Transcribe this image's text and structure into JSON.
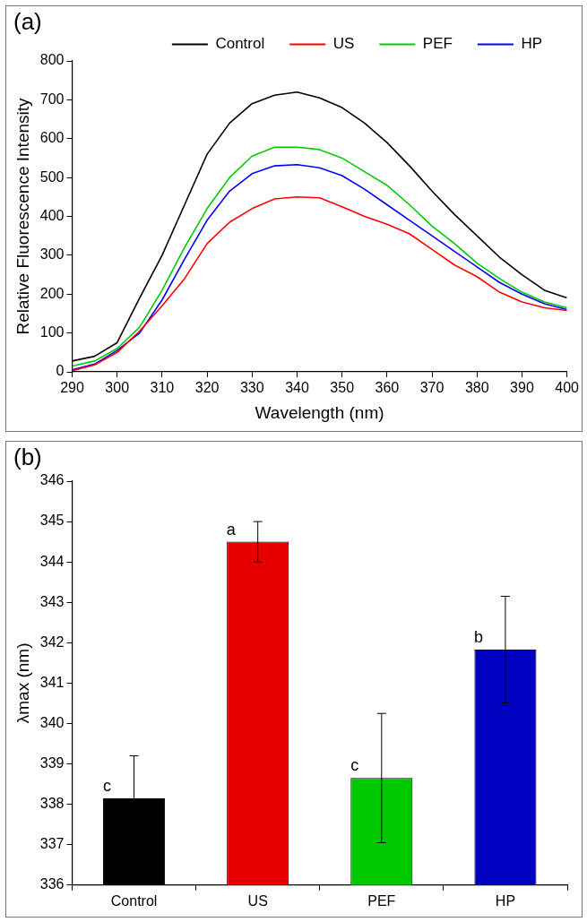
{
  "chart_data": [
    {
      "type": "line",
      "annotations": [
        "(a)"
      ],
      "xlabel": "Wavelength (nm)",
      "ylabel": "Relative Fluorescence Intensity",
      "xlim": [
        290,
        400
      ],
      "xticks": [
        290,
        300,
        310,
        320,
        330,
        340,
        350,
        360,
        370,
        380,
        390,
        400
      ],
      "ylim": [
        0,
        800
      ],
      "yticks": [
        0,
        100,
        200,
        300,
        400,
        500,
        600,
        700,
        800
      ],
      "grid": false,
      "legend": "top",
      "marker": "none",
      "line_style": "solid",
      "x": [
        290,
        295,
        300,
        305,
        310,
        315,
        320,
        325,
        330,
        335,
        340,
        345,
        350,
        355,
        360,
        365,
        370,
        375,
        380,
        385,
        390,
        395,
        400
      ],
      "series": [
        {
          "name": "Control",
          "color": "#000000",
          "values": [
            28,
            40,
            75,
            190,
            300,
            430,
            560,
            640,
            690,
            712,
            720,
            705,
            680,
            640,
            590,
            530,
            465,
            405,
            350,
            295,
            250,
            210,
            190
          ]
        },
        {
          "name": "US",
          "color": "#ff0000",
          "values": [
            3,
            18,
            50,
            105,
            170,
            240,
            330,
            385,
            420,
            445,
            450,
            448,
            425,
            400,
            380,
            355,
            315,
            275,
            245,
            205,
            180,
            165,
            158
          ]
        },
        {
          "name": "PEF",
          "color": "#00cc00",
          "values": [
            15,
            28,
            60,
            115,
            210,
            320,
            420,
            500,
            555,
            578,
            578,
            572,
            550,
            515,
            480,
            430,
            375,
            330,
            280,
            240,
            205,
            180,
            165
          ]
        },
        {
          "name": "HP",
          "color": "#0000ff",
          "values": [
            5,
            20,
            55,
            100,
            185,
            290,
            390,
            465,
            510,
            530,
            533,
            525,
            505,
            470,
            430,
            390,
            350,
            310,
            270,
            230,
            200,
            175,
            160
          ]
        }
      ]
    },
    {
      "type": "bar",
      "annotations": [
        "(b)",
        {
          "text": "c",
          "x": "Control",
          "y": 338.15
        },
        {
          "text": "a",
          "x": "US",
          "y": 344.5
        },
        {
          "text": "c",
          "x": "PEF",
          "y": 338.65
        },
        {
          "text": "b",
          "x": "HP",
          "y": 341.83
        }
      ],
      "ylabel": "λmax (nm)",
      "ylim": [
        336,
        346
      ],
      "yticks": [
        336,
        337,
        338,
        339,
        340,
        341,
        342,
        343,
        344,
        345,
        346
      ],
      "grid": false,
      "categories": [
        "Control",
        "US",
        "PEF",
        "HP"
      ],
      "values": [
        338.15,
        344.5,
        338.65,
        341.83
      ],
      "errors": [
        1.05,
        0.5,
        1.6,
        1.32
      ],
      "colors": [
        "#000000",
        "#e80000",
        "#00c800",
        "#0000c0"
      ]
    }
  ]
}
